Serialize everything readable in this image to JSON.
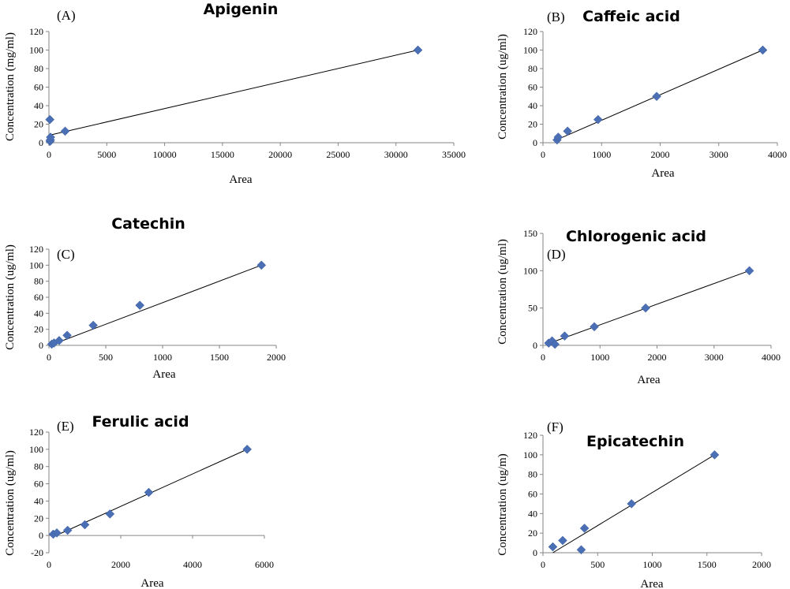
{
  "chart_data": [
    {
      "type": "scatter",
      "panel": "(A)",
      "title": "Apigenin",
      "xlabel": "Area",
      "ylabel": "Concentration (mg/ml)",
      "xlim": [
        0,
        35000
      ],
      "ylim": [
        0,
        120
      ],
      "xticks": [
        0,
        5000,
        10000,
        15000,
        20000,
        25000,
        30000,
        35000
      ],
      "yticks": [
        0,
        20,
        40,
        60,
        80,
        100,
        120
      ],
      "x": [
        80,
        100,
        120,
        140,
        1400,
        31900
      ],
      "y": [
        25,
        1.5,
        3,
        6,
        12.5,
        100
      ],
      "trendline": [
        [
          0,
          8
        ],
        [
          31900,
          100
        ]
      ]
    },
    {
      "type": "scatter",
      "panel": "(B)",
      "title": "Caffeic acid",
      "xlabel": "Area",
      "ylabel": "Concentration (ug/ml)",
      "xlim": [
        0,
        4000
      ],
      "ylim": [
        0,
        120
      ],
      "xticks": [
        0,
        1000,
        2000,
        3000,
        4000
      ],
      "yticks": [
        0,
        20,
        40,
        60,
        80,
        100,
        120
      ],
      "x": [
        240,
        260,
        420,
        940,
        1940,
        3750
      ],
      "y": [
        3,
        6,
        12.5,
        25,
        50,
        100
      ],
      "trendline": [
        [
          230,
          3
        ],
        [
          3750,
          100
        ]
      ]
    },
    {
      "type": "scatter",
      "panel": "(C)",
      "title": "Catechin",
      "xlabel": "Area",
      "ylabel": "Concentration (ug/ml)",
      "xlim": [
        0,
        2000
      ],
      "ylim": [
        0,
        120
      ],
      "xticks": [
        0,
        500,
        1000,
        1500,
        2000
      ],
      "yticks": [
        0,
        20,
        40,
        60,
        80,
        100,
        120
      ],
      "x": [
        25,
        45,
        90,
        160,
        390,
        800,
        1870
      ],
      "y": [
        1.5,
        3,
        6,
        12.5,
        25,
        50,
        100
      ],
      "trendline": [
        [
          10,
          0
        ],
        [
          1870,
          100
        ]
      ]
    },
    {
      "type": "scatter",
      "panel": "(D)",
      "title": "Chlorogenic acid",
      "xlabel": "Area",
      "ylabel": "Concentration (ug/ml)",
      "xlim": [
        0,
        4000
      ],
      "ylim": [
        0,
        150
      ],
      "xticks": [
        0,
        1000,
        2000,
        3000,
        4000
      ],
      "yticks": [
        0,
        50,
        100,
        150
      ],
      "x": [
        100,
        160,
        210,
        380,
        900,
        1800,
        3620
      ],
      "y": [
        3,
        6,
        1.5,
        12.5,
        25,
        50,
        100
      ],
      "trendline": [
        [
          80,
          2
        ],
        [
          3620,
          100
        ]
      ]
    },
    {
      "type": "scatter",
      "panel": "(E)",
      "title": "Ferulic acid",
      "xlabel": "Area",
      "ylabel": "Concentration (ug/ml)",
      "xlim": [
        0,
        6000
      ],
      "ylim": [
        -20,
        120
      ],
      "xticks": [
        0,
        2000,
        4000,
        6000
      ],
      "yticks": [
        -20,
        0,
        20,
        40,
        60,
        80,
        100,
        120
      ],
      "x": [
        120,
        220,
        520,
        1000,
        1700,
        2780,
        5520
      ],
      "y": [
        1.5,
        3,
        6,
        12.5,
        25,
        50,
        100
      ],
      "trendline": [
        [
          200,
          0
        ],
        [
          5520,
          100
        ]
      ]
    },
    {
      "type": "scatter",
      "panel": "(F)",
      "title": "Epicatechin",
      "xlabel": "Area",
      "ylabel": "Concentration (ug/m)",
      "xlim": [
        0,
        2000
      ],
      "ylim": [
        0,
        120
      ],
      "xticks": [
        0,
        500,
        1000,
        1500,
        2000
      ],
      "yticks": [
        0,
        20,
        40,
        60,
        80,
        100,
        120
      ],
      "x": [
        90,
        180,
        350,
        380,
        810,
        1570
      ],
      "y": [
        6,
        12.5,
        3,
        25,
        50,
        100
      ],
      "trendline": [
        [
          90,
          0
        ],
        [
          1570,
          100
        ]
      ]
    }
  ]
}
